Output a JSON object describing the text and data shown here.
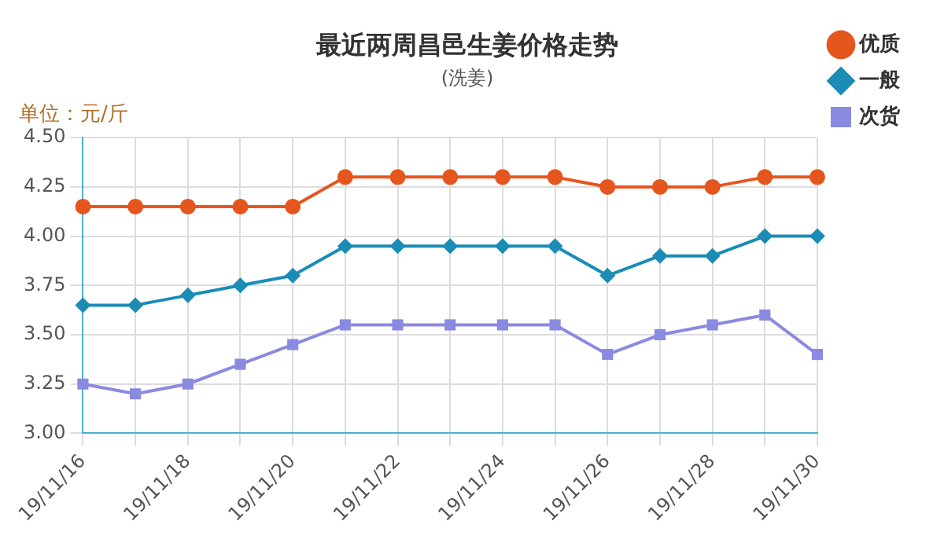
{
  "chart_data": {
    "type": "line",
    "title": "最近两周昌邑生姜价格走势",
    "subtitle": "(洗姜)",
    "ylabel": "单位：元/斤",
    "categories": [
      "19/11/16",
      null,
      "19/11/18",
      null,
      "19/11/20",
      null,
      "19/11/22",
      null,
      "19/11/24",
      null,
      "19/11/26",
      null,
      "19/11/28",
      null,
      "19/11/30"
    ],
    "series": [
      {
        "name": "优质",
        "color": "#e5561e",
        "marker": "circle",
        "values": [
          4.15,
          4.15,
          4.15,
          4.15,
          4.15,
          4.3,
          4.3,
          4.3,
          4.3,
          4.3,
          4.25,
          4.25,
          4.25,
          4.3,
          4.3
        ]
      },
      {
        "name": "一般",
        "color": "#1a8cb5",
        "marker": "diamond",
        "values": [
          3.65,
          3.65,
          3.7,
          3.75,
          3.8,
          3.95,
          3.95,
          3.95,
          3.95,
          3.95,
          3.8,
          3.9,
          3.9,
          4.0,
          4.0
        ]
      },
      {
        "name": "次货",
        "color": "#8a8ae0",
        "marker": "square",
        "values": [
          3.25,
          3.2,
          3.25,
          3.35,
          3.45,
          3.55,
          3.55,
          3.55,
          3.55,
          3.55,
          3.4,
          3.5,
          3.55,
          3.6,
          3.4
        ]
      }
    ],
    "ylim": [
      3,
      4.5
    ],
    "yticks": [
      {
        "value": 3,
        "label": "3.00"
      },
      {
        "value": 3.25,
        "label": "3.25"
      },
      {
        "value": 3.5,
        "label": "3.50"
      },
      {
        "value": 3.75,
        "label": "3.75"
      },
      {
        "value": 4,
        "label": "4.00"
      },
      {
        "value": 4.25,
        "label": "4.25"
      },
      {
        "value": 4.5,
        "label": "4.50"
      }
    ],
    "grid": true,
    "legend": "top right"
  }
}
